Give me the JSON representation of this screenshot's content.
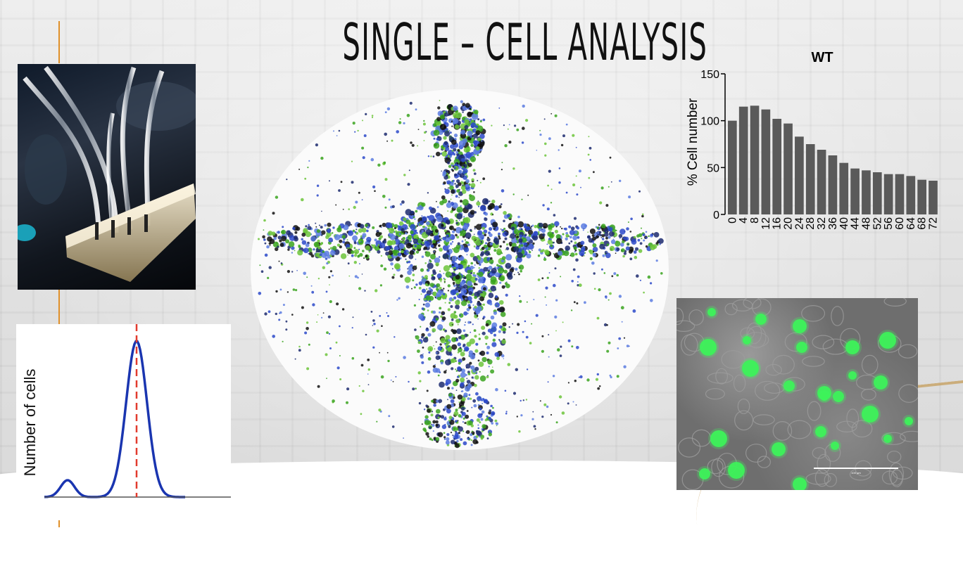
{
  "slide": {
    "title": "SINGLE – CELL ANALYSIS"
  },
  "bar_chart": {
    "chart_data": {
      "type": "bar",
      "title": "WT",
      "xlabel": "",
      "ylabel": "% Cell number",
      "ylim": [
        0,
        150
      ],
      "yticks": [
        "0",
        "50",
        "100",
        "150"
      ],
      "categories": [
        "0",
        "4",
        "8",
        "12",
        "16",
        "20",
        "24",
        "28",
        "32",
        "36",
        "40",
        "44",
        "48",
        "52",
        "56",
        "60",
        "64",
        "68",
        "72"
      ],
      "values": [
        100,
        115,
        116,
        112,
        102,
        97,
        83,
        75,
        69,
        63,
        55,
        49,
        47,
        45,
        43,
        43,
        41,
        37,
        36
      ],
      "grid": false,
      "bar_color": "#5a5a5a"
    }
  },
  "distribution_chart": {
    "ylabel": "Number of cells",
    "line_color": "#1a35b0",
    "marker_color": "#e23b2e"
  },
  "fluorescence_image": {
    "scale_label": "100 µm"
  }
}
